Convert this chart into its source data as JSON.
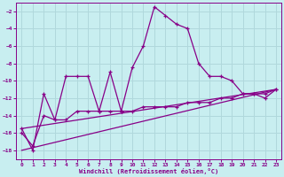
{
  "xlabel": "Windchill (Refroidissement éolien,°C)",
  "background_color": "#c8eef0",
  "grid_color": "#b0d8dc",
  "line_color": "#880088",
  "xlim": [
    -0.5,
    23.5
  ],
  "ylim": [
    -19,
    -1
  ],
  "xticks": [
    0,
    1,
    2,
    3,
    4,
    5,
    6,
    7,
    8,
    9,
    10,
    11,
    12,
    13,
    14,
    15,
    16,
    17,
    18,
    19,
    20,
    21,
    22,
    23
  ],
  "yticks": [
    -18,
    -16,
    -14,
    -12,
    -10,
    -8,
    -6,
    -4,
    -2
  ],
  "series1_x": [
    0,
    1,
    2,
    3,
    4,
    5,
    6,
    7,
    8,
    9,
    10,
    11,
    12,
    13,
    14,
    15,
    16,
    17,
    18,
    19,
    20,
    21,
    22,
    23
  ],
  "series1_y": [
    -15.5,
    -18.0,
    -11.5,
    -14.5,
    -9.5,
    -9.5,
    -9.5,
    -13.5,
    -9.0,
    -13.5,
    -8.5,
    -6.0,
    -1.5,
    -2.5,
    -3.5,
    -4.0,
    -8.0,
    -9.5,
    -9.5,
    -10.0,
    -11.5,
    -11.5,
    -12.0,
    -11.0
  ],
  "series2_x": [
    0,
    1,
    2,
    3,
    4,
    5,
    6,
    7,
    8,
    9,
    10,
    11,
    12,
    13,
    14,
    15,
    16,
    17,
    18,
    19,
    20,
    21,
    22,
    23
  ],
  "series2_y": [
    -16.0,
    -17.5,
    -14.0,
    -14.5,
    -14.5,
    -13.5,
    -13.5,
    -13.5,
    -13.5,
    -13.5,
    -13.5,
    -13.0,
    -13.0,
    -13.0,
    -13.0,
    -12.5,
    -12.5,
    -12.5,
    -12.0,
    -12.0,
    -11.5,
    -11.5,
    -11.5,
    -11.0
  ],
  "series3_x": [
    0,
    23
  ],
  "series3_y": [
    -15.5,
    -11.0
  ],
  "series4_x": [
    0,
    23
  ],
  "series4_y": [
    -18.0,
    -11.0
  ]
}
